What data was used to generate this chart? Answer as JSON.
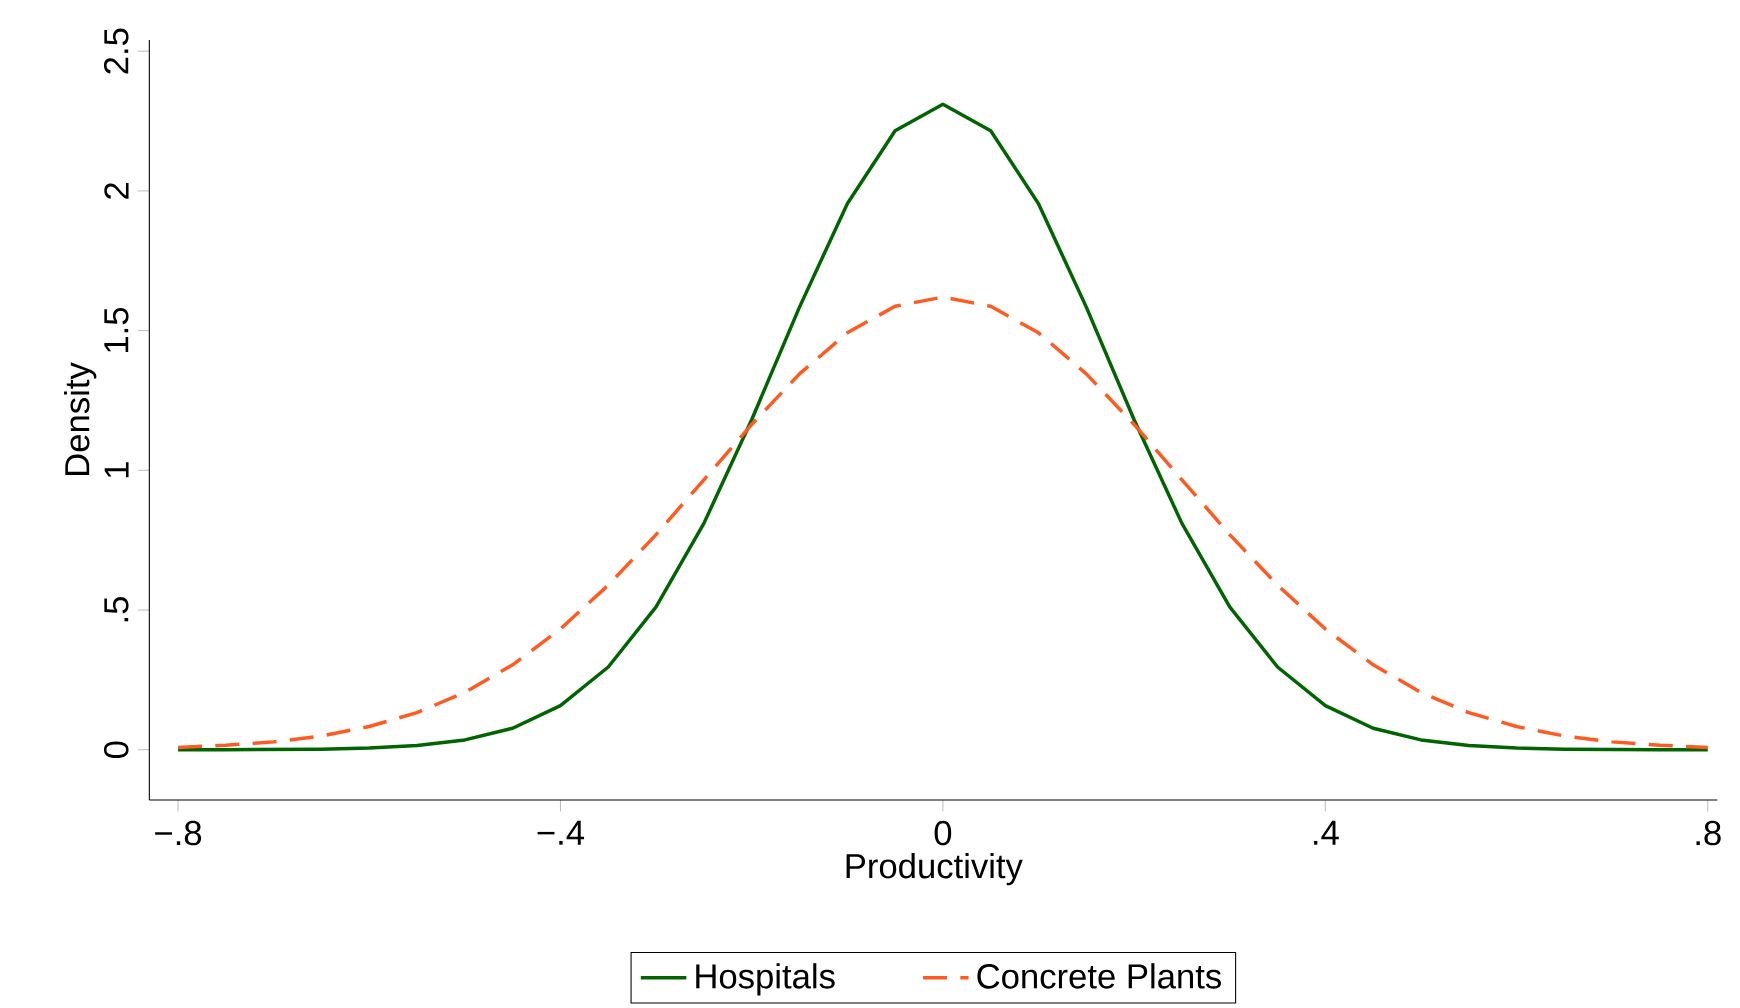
{
  "chart_data": {
    "type": "line",
    "xlabel": "Productivity",
    "ylabel": "Density",
    "x": [
      -0.8,
      -0.75,
      -0.7,
      -0.65,
      -0.6,
      -0.55,
      -0.5,
      -0.45,
      -0.4,
      -0.35,
      -0.3,
      -0.25,
      -0.2,
      -0.15,
      -0.1,
      -0.05,
      0,
      0.05,
      0.1,
      0.15,
      0.2,
      0.25,
      0.3,
      0.35,
      0.4,
      0.45,
      0.5,
      0.55,
      0.6,
      0.65,
      0.7,
      0.75,
      0.8
    ],
    "series": [
      {
        "name": "Hospitals",
        "color": "#006400",
        "line_style": "solid",
        "values": [
          0,
          0,
          0.001,
          0.002,
          0.006,
          0.015,
          0.035,
          0.077,
          0.158,
          0.296,
          0.511,
          0.81,
          1.181,
          1.584,
          1.954,
          2.215,
          2.31,
          2.215,
          1.954,
          1.584,
          1.181,
          0.81,
          0.511,
          0.296,
          0.158,
          0.077,
          0.035,
          0.015,
          0.006,
          0.002,
          0.001,
          0,
          0
        ]
      },
      {
        "name": "Concrete Plants",
        "color": "#ff5a1f",
        "line_style": "dashed",
        "values": [
          0.008,
          0.016,
          0.028,
          0.049,
          0.083,
          0.133,
          0.205,
          0.304,
          0.432,
          0.589,
          0.77,
          0.966,
          1.164,
          1.345,
          1.492,
          1.587,
          1.62,
          1.587,
          1.492,
          1.345,
          1.164,
          0.966,
          0.77,
          0.589,
          0.432,
          0.304,
          0.205,
          0.133,
          0.083,
          0.049,
          0.028,
          0.016,
          0.008
        ]
      }
    ],
    "xlim": [
      -0.83,
      0.81
    ],
    "ylim": [
      -0.18,
      2.54
    ],
    "xticks": [
      {
        "value": -0.8,
        "label": "−.8"
      },
      {
        "value": -0.4,
        "label": "−.4"
      },
      0,
      {
        "value": 0.4,
        "label": ".4"
      },
      {
        "value": 0.8,
        "label": ".8"
      }
    ],
    "yticks": [
      0,
      {
        "value": 0.5,
        "label": ".5"
      },
      1,
      1.5,
      2,
      2.5
    ],
    "grid": false,
    "legend": "bottom",
    "marker": "none"
  }
}
